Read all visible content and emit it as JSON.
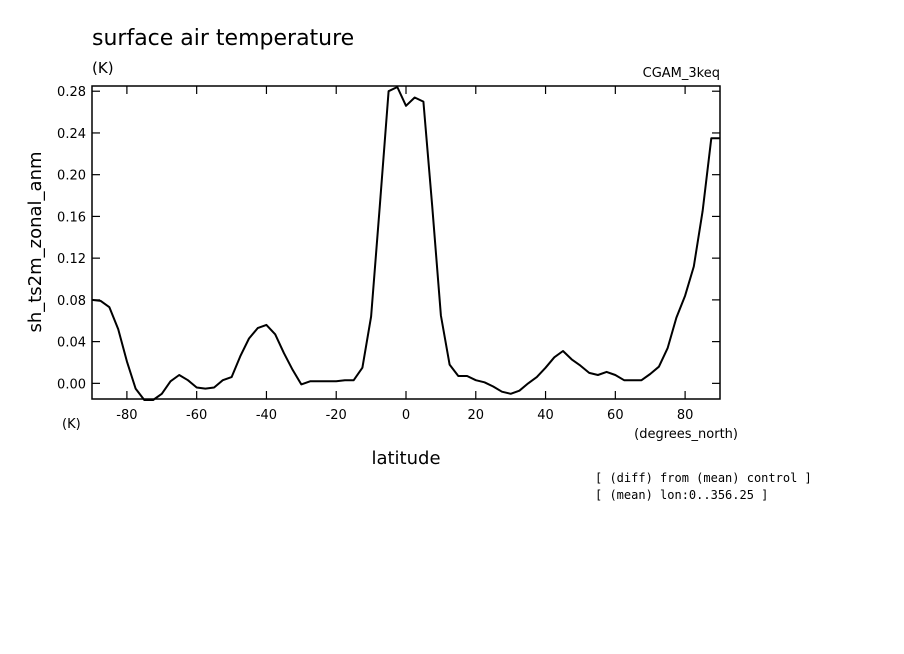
{
  "chart_data": {
    "type": "line",
    "title": "surface air temperature",
    "title_units": "(K)",
    "experiment": "CGAM_3keq",
    "xlabel": "latitude",
    "ylabel": "sh_ts2m_zonal_anm",
    "x_units": "(degrees_north)",
    "y_units": "(K)",
    "xlim": [
      -90,
      90
    ],
    "ylim": [
      -0.015,
      0.285
    ],
    "x_ticks": [
      -80,
      -60,
      -40,
      -20,
      0,
      20,
      40,
      60,
      80
    ],
    "x_tick_labels": [
      "-80",
      "-60",
      "-40",
      "-20",
      "0",
      "20",
      "40",
      "60",
      "80"
    ],
    "y_ticks": [
      0.0,
      0.04,
      0.08,
      0.12,
      0.16,
      0.2,
      0.24,
      0.28
    ],
    "y_tick_labels": [
      "0.00",
      "0.04",
      "0.08",
      "0.12",
      "0.16",
      "0.20",
      "0.24",
      "0.28"
    ],
    "grid": false,
    "notes": [
      "[ (diff) from (mean) control ]",
      "[ (mean) lon:0..356.25 ]"
    ],
    "series": [
      {
        "x": [
          -90,
          -87.5,
          -85,
          -82.5,
          -80,
          -77.5,
          -75,
          -72.5,
          -70,
          -67.5,
          -65,
          -62.5,
          -60,
          -57.5,
          -55,
          -52.5,
          -50,
          -47.5,
          -45,
          -42.5,
          -40,
          -37.5,
          -35,
          -32.5,
          -30,
          -27.5,
          -25,
          -22.5,
          -20,
          -17.5,
          -15,
          -12.5,
          -10,
          -7.5,
          -5,
          -2.5,
          0,
          2.5,
          5,
          7.5,
          10,
          12.5,
          15,
          17.5,
          20,
          22.5,
          25,
          27.5,
          30,
          32.5,
          35,
          37.5,
          40,
          42.5,
          45,
          47.5,
          50,
          52.5,
          55,
          57.5,
          60,
          62.5,
          65,
          67.5,
          70,
          72.5,
          75,
          77.5,
          80,
          82.5,
          85,
          87.5,
          90
        ],
        "values": [
          0.08,
          0.079,
          0.073,
          0.052,
          0.021,
          -0.005,
          -0.016,
          -0.016,
          -0.01,
          0.002,
          0.008,
          0.003,
          -0.004,
          -0.005,
          -0.004,
          0.003,
          0.006,
          0.026,
          0.043,
          0.053,
          0.056,
          0.047,
          0.029,
          0.013,
          -0.001,
          0.002,
          0.002,
          0.002,
          0.002,
          0.003,
          0.003,
          0.015,
          0.064,
          0.17,
          0.28,
          0.284,
          0.266,
          0.274,
          0.27,
          0.17,
          0.065,
          0.018,
          0.007,
          0.007,
          0.003,
          0.001,
          -0.003,
          -0.008,
          -0.01,
          -0.007,
          0.0,
          0.006,
          0.015,
          0.025,
          0.031,
          0.023,
          0.017,
          0.01,
          0.008,
          0.011,
          0.008,
          0.003,
          0.003,
          0.003,
          0.009,
          0.016,
          0.034,
          0.063,
          0.084,
          0.112,
          0.165,
          0.235,
          0.235
        ]
      }
    ]
  }
}
